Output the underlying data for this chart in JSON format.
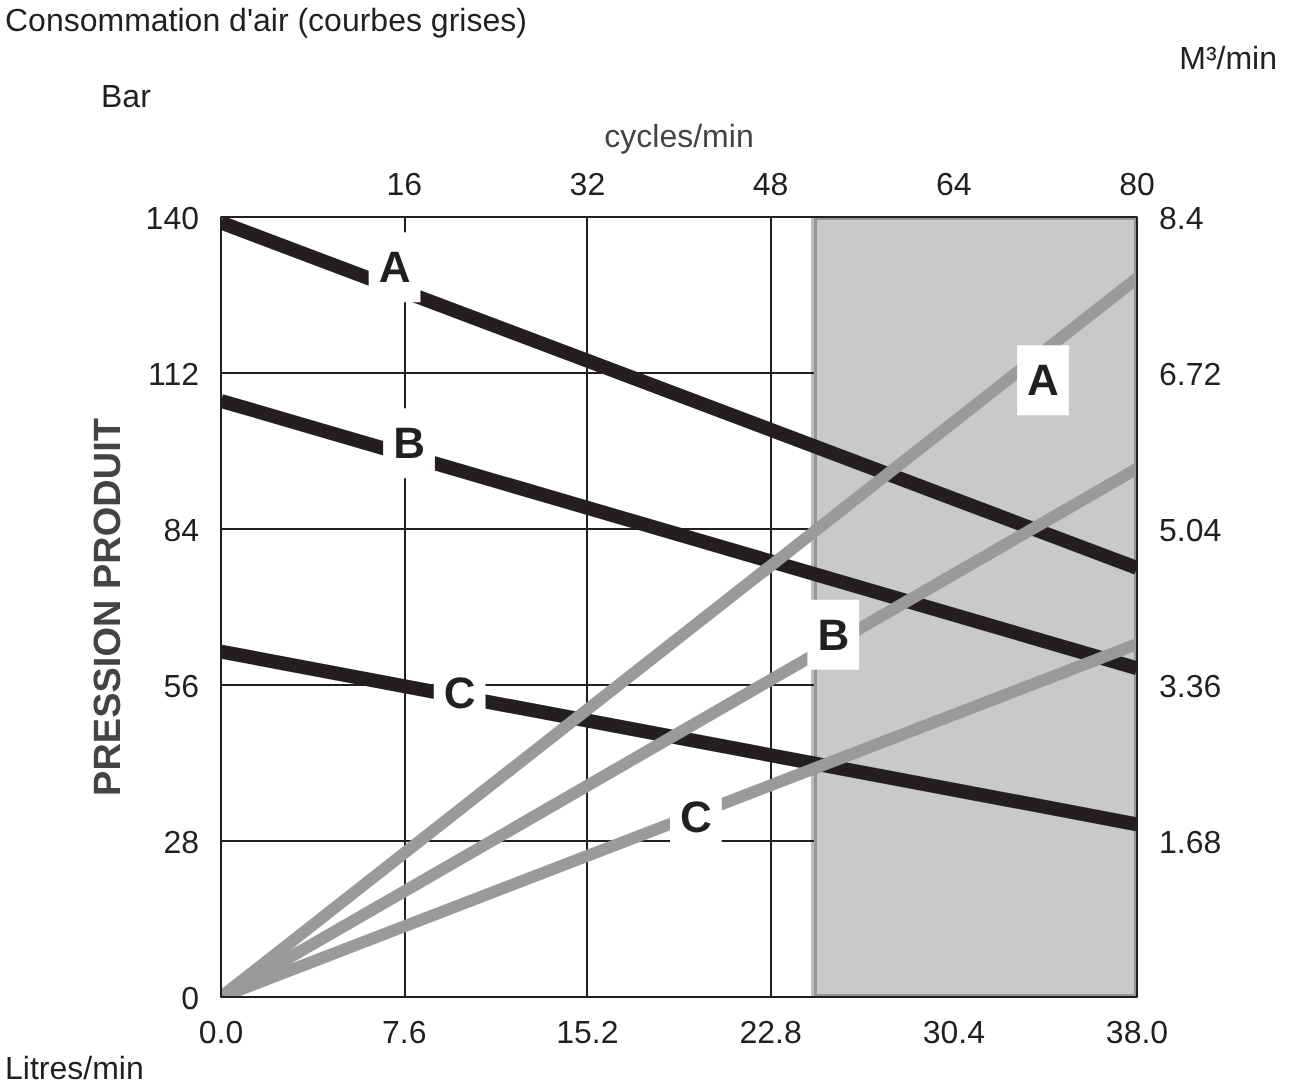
{
  "chart_data": {
    "type": "line",
    "title": "Consommation d'air (courbes grises)",
    "xlabel": "Litres/min",
    "ylabel": "PRESSION PRODUIT",
    "x2label": "cycles/min",
    "y2label": "M³/min",
    "annotations": [
      "Bar",
      {
        "text": "A",
        "x": 7.2,
        "y": 131
      },
      {
        "text": "B",
        "x": 7.8,
        "y": 99.4
      },
      {
        "text": "C",
        "x": 9.9,
        "y": 54.6
      },
      {
        "text": "A",
        "x": 34.1,
        "y": 110.7
      },
      {
        "text": "B",
        "x": 25.4,
        "y": 65
      },
      {
        "text": "C",
        "x": 19.7,
        "y": 32.3
      }
    ],
    "x": [
      0,
      38
    ],
    "series": [
      {
        "color": "#231f20",
        "values": [
          139,
          77
        ]
      },
      {
        "color": "#231f20",
        "values": [
          107,
          59
        ]
      },
      {
        "color": "#231f20",
        "values": [
          62,
          31
        ]
      },
      {
        "color": "#999a9c",
        "values": [
          0,
          7.74
        ],
        "axis": "y2"
      },
      {
        "color": "#999a9c",
        "values": [
          0,
          5.69
        ],
        "axis": "y2"
      },
      {
        "color": "#999a9c",
        "values": [
          0,
          3.8
        ],
        "axis": "y2"
      }
    ],
    "xlim": [
      0,
      38
    ],
    "xticks": [
      {
        "value": 0,
        "label": "0.0"
      },
      7.6,
      15.2,
      22.8,
      30.4,
      {
        "value": 38,
        "label": "38.0"
      }
    ],
    "x2lim": [
      0,
      80
    ],
    "x2ticks": [
      16,
      32,
      48,
      64,
      80
    ],
    "ylim": [
      0,
      140
    ],
    "yticks": [
      0,
      28,
      56,
      84,
      112,
      140
    ],
    "y2lim": [
      0,
      8.4
    ],
    "y2ticks": [
      1.68,
      3.36,
      5.04,
      6.72,
      8.4
    ],
    "bands": [
      {
        "axis": "x",
        "from": 24.6,
        "to": 38,
        "color": "#c8c9cb"
      }
    ],
    "grid": true,
    "marker": "none",
    "line_style": "solid"
  }
}
